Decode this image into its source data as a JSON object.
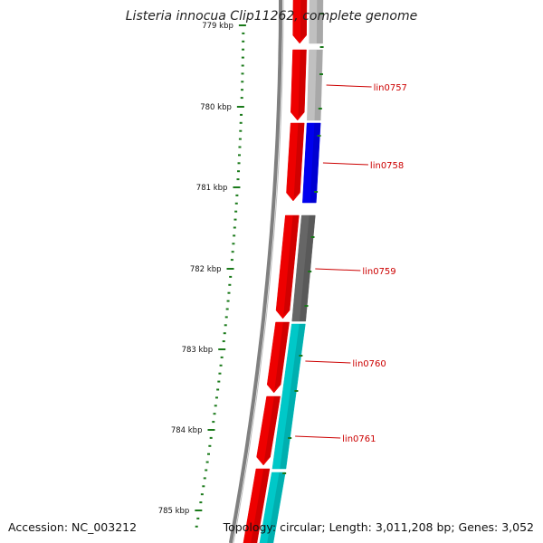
{
  "title": "Listeria innocua Clip11262, complete genome",
  "footer": {
    "accession": "Accession: NC_003212",
    "summary": "Topology: circular; Length: 3,011,208 bp; Genes: 3,052"
  },
  "colors": {
    "tick": "#1a7a1a",
    "backbone": "#808080",
    "feature_label": "#cc0000",
    "red": "#ee0000",
    "light_gray": "#c0c0c0",
    "blue": "#0000ee",
    "dark_gray": "#666666",
    "cyan": "#00c8c8"
  },
  "ticks": {
    "labels": [
      "779 kbp",
      "780 kbp",
      "781 kbp",
      "782 kbp",
      "783 kbp",
      "784 kbp",
      "785 kbp"
    ]
  },
  "genes": [
    {
      "name": "lin0757",
      "color": "cyan_placeholder"
    }
  ],
  "labels": [
    "lin0757",
    "lin0758",
    "lin0759",
    "lin0760",
    "lin0761"
  ]
}
